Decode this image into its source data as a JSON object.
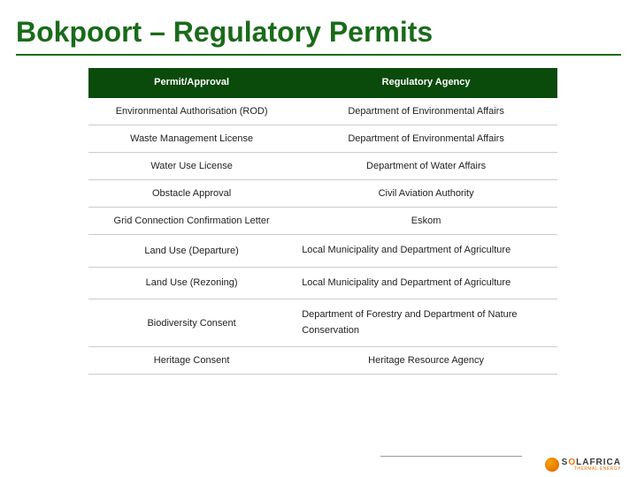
{
  "title": "Bokpoort – Regulatory Permits",
  "table": {
    "header": {
      "col1": "Permit/Approval",
      "col2": "Regulatory Agency"
    },
    "rows": [
      {
        "permit": "Environmental Authorisation (ROD)",
        "agency": "Department of Environmental Affairs",
        "agency_align": "center"
      },
      {
        "permit": "Waste Management License",
        "agency": "Department of Environmental Affairs",
        "agency_align": "center"
      },
      {
        "permit": "Water Use License",
        "agency": "Department of Water Affairs",
        "agency_align": "center"
      },
      {
        "permit": "Obstacle Approval",
        "agency": "Civil Aviation Authority",
        "agency_align": "center"
      },
      {
        "permit": "Grid Connection Confirmation Letter",
        "agency": "Eskom",
        "agency_align": "center"
      },
      {
        "permit": "Land Use (Departure)",
        "agency": "Local Municipality and Department of Agriculture",
        "agency_align": "left"
      },
      {
        "permit": "Land Use (Rezoning)",
        "agency": "Local Municipality and Department of Agriculture",
        "agency_align": "left"
      },
      {
        "permit": "Biodiversity Consent",
        "agency": "Department of Forestry and Department of Nature Conservation",
        "agency_align": "left"
      },
      {
        "permit": "Heritage Consent",
        "agency": "Heritage Resource Agency",
        "agency_align": "center"
      }
    ]
  },
  "logo": {
    "prefix": "S",
    "orange": "O",
    "suffix": "LAFRICA",
    "sub": "THERMAL ENERGY"
  },
  "colors": {
    "title": "#1a6b1a",
    "header_bg": "#0a4a0a",
    "header_text": "#ffffff",
    "body_text": "#222222",
    "row_border": "#cccccc",
    "logo_orange": "#e67300",
    "logo_gray": "#3a3a3a",
    "background": "#ffffff"
  }
}
